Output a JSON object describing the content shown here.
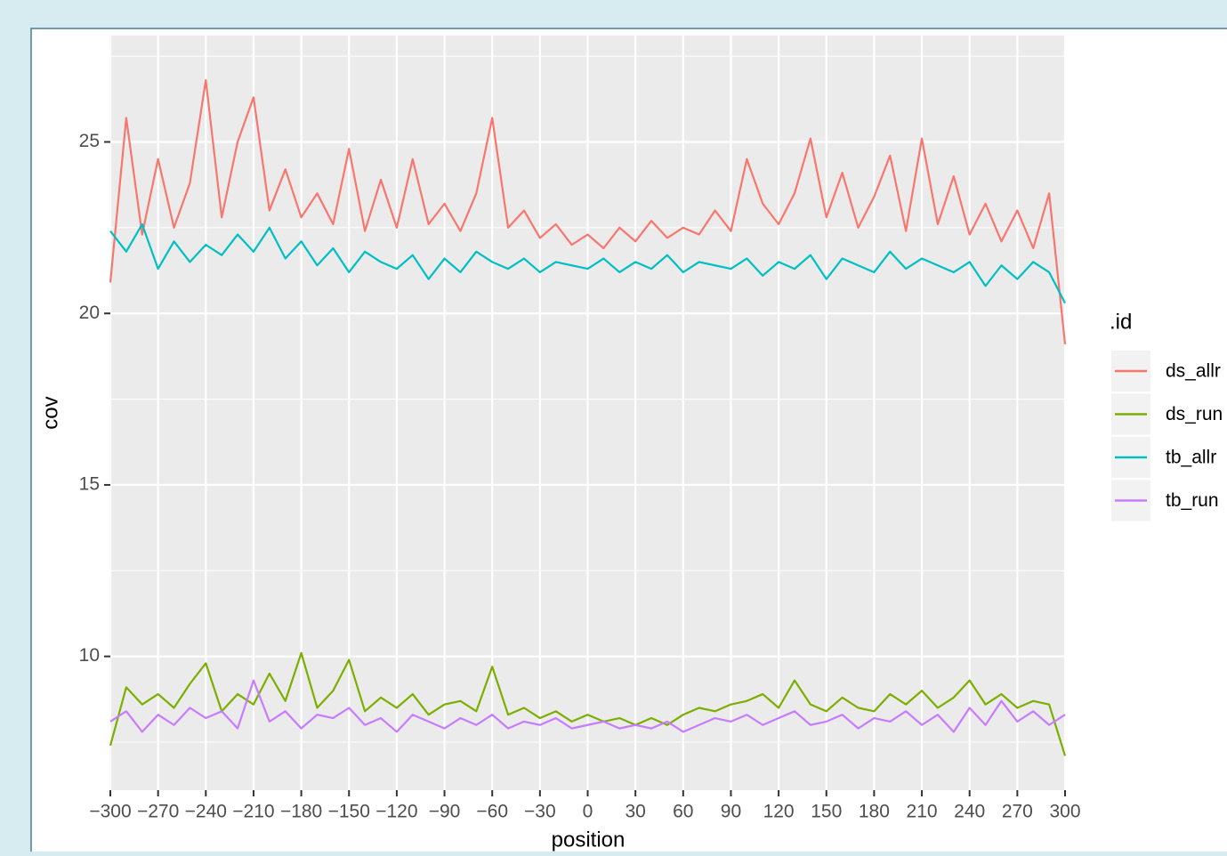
{
  "chart_data": {
    "type": "line",
    "x": [
      -300,
      -290,
      -280,
      -270,
      -260,
      -250,
      -240,
      -230,
      -220,
      -210,
      -200,
      -190,
      -180,
      -170,
      -160,
      -150,
      -140,
      -130,
      -120,
      -110,
      -100,
      -90,
      -80,
      -70,
      -60,
      -50,
      -40,
      -30,
      -20,
      -10,
      0,
      10,
      20,
      30,
      40,
      50,
      60,
      70,
      80,
      90,
      100,
      110,
      120,
      130,
      140,
      150,
      160,
      170,
      180,
      190,
      200,
      210,
      220,
      230,
      240,
      250,
      260,
      270,
      280,
      290,
      300
    ],
    "series": [
      {
        "name": "ds_allr",
        "color": "#F8766D",
        "values": [
          20.9,
          25.7,
          22.3,
          24.5,
          22.5,
          23.8,
          26.8,
          22.8,
          25.0,
          26.3,
          23.0,
          24.2,
          22.8,
          23.5,
          22.6,
          24.8,
          22.4,
          23.9,
          22.5,
          24.5,
          22.6,
          23.2,
          22.4,
          23.5,
          25.7,
          22.5,
          23.0,
          22.2,
          22.6,
          22.0,
          22.3,
          21.9,
          22.5,
          22.1,
          22.7,
          22.2,
          22.5,
          22.3,
          23.0,
          22.4,
          24.5,
          23.2,
          22.6,
          23.5,
          25.1,
          22.8,
          24.1,
          22.5,
          23.4,
          24.6,
          22.4,
          25.1,
          22.6,
          24.0,
          22.3,
          23.2,
          22.1,
          23.0,
          21.9,
          23.5,
          19.1
        ]
      },
      {
        "name": "ds_run",
        "color": "#7CAE00",
        "values": [
          7.4,
          9.1,
          8.6,
          8.9,
          8.5,
          9.2,
          9.8,
          8.4,
          8.9,
          8.6,
          9.5,
          8.7,
          10.1,
          8.5,
          9.0,
          9.9,
          8.4,
          8.8,
          8.5,
          8.9,
          8.3,
          8.6,
          8.7,
          8.4,
          9.7,
          8.3,
          8.5,
          8.2,
          8.4,
          8.1,
          8.3,
          8.1,
          8.2,
          8.0,
          8.2,
          8.0,
          8.3,
          8.5,
          8.4,
          8.6,
          8.7,
          8.9,
          8.5,
          9.3,
          8.6,
          8.4,
          8.8,
          8.5,
          8.4,
          8.9,
          8.6,
          9.0,
          8.5,
          8.8,
          9.3,
          8.6,
          8.9,
          8.5,
          8.7,
          8.6,
          7.1
        ]
      },
      {
        "name": "tb_allr",
        "color": "#00BFC4",
        "values": [
          22.4,
          21.8,
          22.6,
          21.3,
          22.1,
          21.5,
          22.0,
          21.7,
          22.3,
          21.8,
          22.5,
          21.6,
          22.1,
          21.4,
          21.9,
          21.2,
          21.8,
          21.5,
          21.3,
          21.7,
          21.0,
          21.6,
          21.2,
          21.8,
          21.5,
          21.3,
          21.6,
          21.2,
          21.5,
          21.4,
          21.3,
          21.6,
          21.2,
          21.5,
          21.3,
          21.7,
          21.2,
          21.5,
          21.4,
          21.3,
          21.6,
          21.1,
          21.5,
          21.3,
          21.7,
          21.0,
          21.6,
          21.4,
          21.2,
          21.8,
          21.3,
          21.6,
          21.4,
          21.2,
          21.5,
          20.8,
          21.4,
          21.0,
          21.5,
          21.2,
          20.3
        ]
      },
      {
        "name": "tb_run",
        "color": "#C77CFF",
        "values": [
          8.1,
          8.4,
          7.8,
          8.3,
          8.0,
          8.5,
          8.2,
          8.4,
          7.9,
          9.3,
          8.1,
          8.4,
          7.9,
          8.3,
          8.2,
          8.5,
          8.0,
          8.2,
          7.8,
          8.3,
          8.1,
          7.9,
          8.2,
          8.0,
          8.3,
          7.9,
          8.1,
          8.0,
          8.2,
          7.9,
          8.0,
          8.1,
          7.9,
          8.0,
          7.9,
          8.1,
          7.8,
          8.0,
          8.2,
          8.1,
          8.3,
          8.0,
          8.2,
          8.4,
          8.0,
          8.1,
          8.3,
          7.9,
          8.2,
          8.1,
          8.4,
          8.0,
          8.3,
          7.8,
          8.5,
          8.0,
          8.7,
          8.1,
          8.4,
          8.0,
          8.3
        ]
      }
    ],
    "xlim": [
      -300,
      300
    ],
    "xticks": [
      {
        "value": -300,
        "label": "−300"
      },
      {
        "value": -270,
        "label": "−270"
      },
      {
        "value": -240,
        "label": "−240"
      },
      {
        "value": -210,
        "label": "−210"
      },
      {
        "value": -180,
        "label": "−180"
      },
      {
        "value": -150,
        "label": "−150"
      },
      {
        "value": -120,
        "label": "−120"
      },
      {
        "value": -90,
        "label": "−90"
      },
      {
        "value": -60,
        "label": "−60"
      },
      {
        "value": -30,
        "label": "−30"
      },
      0,
      30,
      60,
      90,
      120,
      150,
      180,
      210,
      240,
      270,
      300
    ],
    "ylim": [
      6.1,
      28.1
    ],
    "yticks": [
      10,
      15,
      20,
      25
    ],
    "yminor": [
      7.5,
      12.5,
      17.5,
      22.5,
      27.5
    ],
    "xlabel": "position",
    "ylabel": "cov",
    "legend_title": ".id",
    "grid": true
  }
}
